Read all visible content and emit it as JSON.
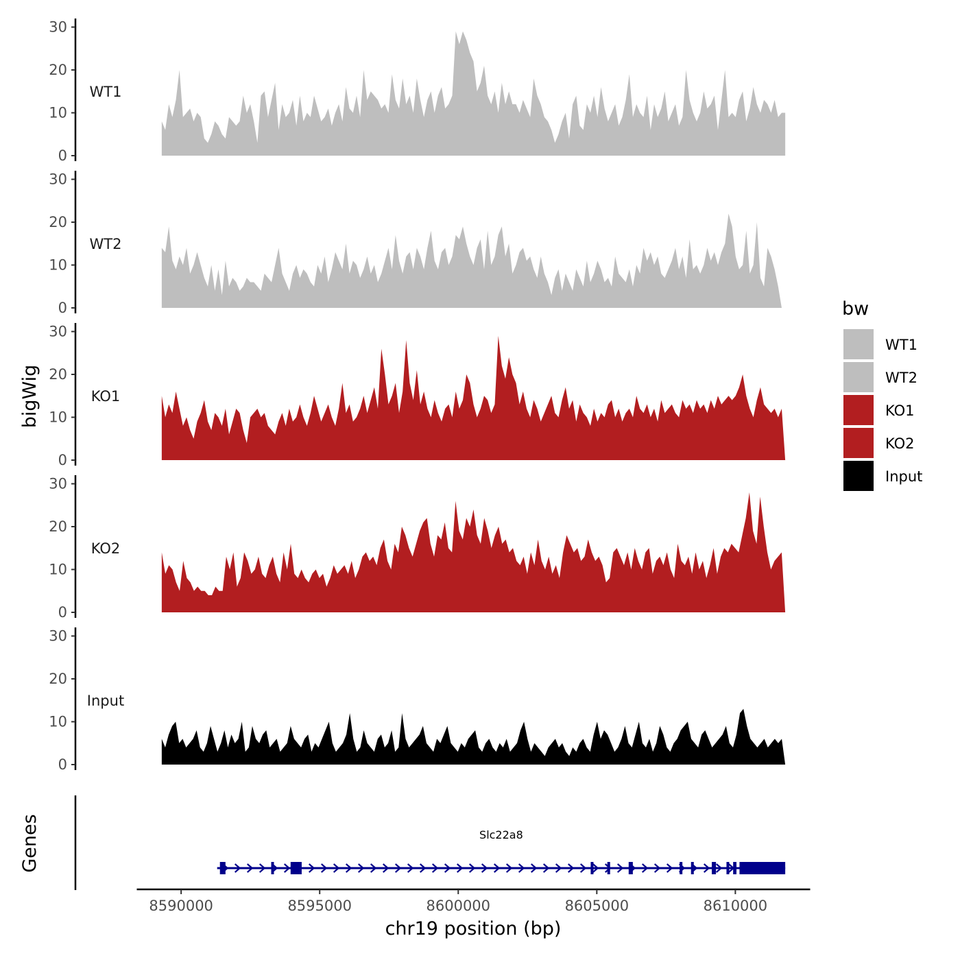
{
  "chart_data": {
    "type": "area",
    "title": "",
    "ylabel": "bigWig",
    "xlabel": "chr19 position (bp)",
    "genes_label": "Genes",
    "xlim": [
      8589300,
      8611800
    ],
    "ylim": [
      0,
      30
    ],
    "x_ticks": [
      8590000,
      8595000,
      8600000,
      8605000,
      8610000
    ],
    "x_tick_labels": [
      "8590000",
      "8595000",
      "8600000",
      "8605000",
      "8610000"
    ],
    "y_ticks": [
      0,
      10,
      20,
      30
    ],
    "y_tick_labels": [
      "0",
      "10",
      "20",
      "30"
    ],
    "legend": {
      "title": "bw",
      "entries": [
        {
          "name": "WT1",
          "color": "#bebebe"
        },
        {
          "name": "WT2",
          "color": "#bebebe"
        },
        {
          "name": "KO1",
          "color": "#b21e20"
        },
        {
          "name": "KO2",
          "color": "#b21e20"
        },
        {
          "name": "Input",
          "color": "#000000"
        }
      ]
    },
    "series": [
      {
        "name": "WT1",
        "color": "#bebebe",
        "x_start": 8589300,
        "x_end": 8611800,
        "values": [
          8,
          6,
          12,
          9,
          13,
          20,
          9,
          10,
          11,
          8,
          10,
          9,
          4,
          3,
          5,
          8,
          7,
          5,
          4,
          9,
          8,
          7,
          8,
          14,
          10,
          12,
          8,
          3,
          14,
          15,
          9,
          13,
          17,
          6,
          12,
          9,
          10,
          13,
          7,
          14,
          8,
          10,
          9,
          14,
          11,
          8,
          9,
          11,
          7,
          10,
          12,
          8,
          16,
          11,
          10,
          14,
          9,
          20,
          13,
          15,
          14,
          13,
          11,
          12,
          10,
          19,
          13,
          11,
          18,
          12,
          14,
          10,
          18,
          13,
          9,
          13,
          15,
          10,
          14,
          16,
          11,
          12,
          14,
          29,
          26,
          29,
          27,
          24,
          22,
          15,
          17,
          21,
          14,
          12,
          15,
          10,
          17,
          12,
          15,
          12,
          12,
          10,
          13,
          11,
          9,
          18,
          14,
          12,
          9,
          8,
          6,
          3,
          5,
          8,
          10,
          4,
          12,
          14,
          7,
          6,
          12,
          10,
          14,
          9,
          16,
          11,
          8,
          10,
          12,
          7,
          9,
          13,
          19,
          9,
          12,
          10,
          9,
          14,
          6,
          12,
          9,
          11,
          15,
          8,
          10,
          12,
          7,
          9,
          20,
          13,
          10,
          8,
          10,
          15,
          11,
          12,
          14,
          6,
          13,
          20,
          9,
          10,
          9,
          13,
          15,
          8,
          11,
          16,
          12,
          10,
          13,
          12,
          10,
          13,
          9,
          10,
          10
        ]
      },
      {
        "name": "WT2",
        "color": "#bebebe",
        "x_start": 8589300,
        "x_end": 8611800,
        "values": [
          14,
          13,
          19,
          11,
          9,
          12,
          10,
          14,
          8,
          10,
          13,
          10,
          7,
          5,
          10,
          4,
          9,
          3,
          11,
          5,
          7,
          6,
          4,
          5,
          7,
          6,
          6,
          5,
          4,
          8,
          7,
          6,
          10,
          14,
          8,
          6,
          4,
          8,
          10,
          7,
          9,
          8,
          6,
          5,
          10,
          8,
          12,
          6,
          9,
          13,
          11,
          9,
          15,
          8,
          11,
          10,
          7,
          9,
          12,
          8,
          10,
          6,
          8,
          11,
          14,
          9,
          17,
          11,
          8,
          12,
          13,
          9,
          14,
          12,
          9,
          14,
          18,
          11,
          9,
          13,
          14,
          10,
          12,
          17,
          16,
          19,
          15,
          12,
          10,
          14,
          16,
          9,
          18,
          10,
          12,
          17,
          19,
          12,
          15,
          8,
          10,
          13,
          14,
          11,
          12,
          9,
          7,
          12,
          8,
          6,
          3,
          7,
          9,
          4,
          8,
          6,
          4,
          9,
          7,
          5,
          11,
          6,
          8,
          11,
          9,
          6,
          7,
          5,
          12,
          8,
          7,
          6,
          9,
          5,
          10,
          8,
          14,
          11,
          13,
          10,
          12,
          8,
          7,
          9,
          11,
          14,
          9,
          12,
          7,
          16,
          9,
          10,
          8,
          10,
          14,
          11,
          13,
          10,
          13,
          15,
          22,
          19,
          12,
          9,
          10,
          18,
          8,
          10,
          20,
          7,
          5,
          14,
          12,
          9,
          5,
          0,
          0
        ]
      },
      {
        "name": "KO1",
        "color": "#b21e20",
        "x_start": 8589300,
        "x_end": 8611800,
        "values": [
          15,
          10,
          13,
          11,
          16,
          12,
          8,
          10,
          7,
          5,
          9,
          11,
          14,
          9,
          7,
          11,
          10,
          8,
          12,
          6,
          9,
          12,
          11,
          7,
          4,
          10,
          11,
          12,
          10,
          11,
          8,
          7,
          6,
          9,
          11,
          8,
          12,
          9,
          10,
          13,
          10,
          8,
          11,
          15,
          12,
          9,
          11,
          13,
          10,
          8,
          12,
          18,
          11,
          13,
          9,
          10,
          12,
          15,
          11,
          14,
          17,
          12,
          26,
          20,
          13,
          15,
          18,
          11,
          16,
          28,
          18,
          14,
          21,
          13,
          16,
          12,
          10,
          14,
          11,
          9,
          12,
          13,
          10,
          16,
          12,
          14,
          20,
          18,
          13,
          10,
          12,
          15,
          14,
          11,
          13,
          29,
          22,
          19,
          24,
          20,
          18,
          13,
          16,
          12,
          10,
          14,
          12,
          9,
          11,
          13,
          15,
          11,
          10,
          14,
          17,
          12,
          14,
          9,
          13,
          11,
          10,
          8,
          12,
          9,
          11,
          10,
          13,
          14,
          10,
          12,
          9,
          11,
          12,
          10,
          15,
          12,
          11,
          13,
          10,
          12,
          9,
          14,
          11,
          12,
          13,
          11,
          10,
          14,
          12,
          13,
          11,
          14,
          12,
          13,
          11,
          14,
          12,
          15,
          13,
          14,
          15,
          14,
          15,
          17,
          20,
          15,
          12,
          10,
          14,
          17,
          13,
          12,
          11,
          12,
          10,
          12,
          0
        ]
      },
      {
        "name": "KO2",
        "color": "#b21e20",
        "x_start": 8589300,
        "x_end": 8611800,
        "values": [
          14,
          9,
          11,
          10,
          7,
          5,
          12,
          8,
          7,
          5,
          6,
          5,
          5,
          4,
          4,
          6,
          5,
          5,
          13,
          10,
          14,
          6,
          8,
          14,
          12,
          9,
          10,
          13,
          9,
          8,
          11,
          13,
          9,
          7,
          14,
          10,
          16,
          9,
          8,
          10,
          8,
          7,
          9,
          10,
          8,
          9,
          6,
          8,
          11,
          9,
          10,
          11,
          9,
          12,
          8,
          10,
          13,
          14,
          12,
          13,
          11,
          15,
          17,
          12,
          10,
          16,
          14,
          20,
          18,
          15,
          13,
          16,
          19,
          21,
          22,
          16,
          13,
          18,
          17,
          21,
          15,
          14,
          26,
          19,
          17,
          22,
          20,
          24,
          18,
          16,
          22,
          19,
          15,
          18,
          20,
          16,
          17,
          14,
          15,
          12,
          11,
          13,
          9,
          14,
          11,
          17,
          12,
          10,
          13,
          9,
          11,
          8,
          14,
          18,
          16,
          14,
          15,
          12,
          13,
          17,
          14,
          12,
          13,
          11,
          7,
          8,
          14,
          15,
          13,
          11,
          14,
          10,
          15,
          12,
          10,
          14,
          15,
          9,
          12,
          13,
          11,
          14,
          10,
          8,
          16,
          12,
          11,
          13,
          9,
          14,
          10,
          12,
          8,
          11,
          15,
          9,
          13,
          15,
          14,
          16,
          15,
          14,
          18,
          22,
          28,
          19,
          16,
          27,
          20,
          14,
          10,
          12,
          13,
          14,
          0
        ]
      },
      {
        "name": "Input",
        "color": "#000000",
        "x_start": 8589300,
        "x_end": 8611800,
        "values": [
          6,
          4,
          7,
          9,
          10,
          5,
          6,
          4,
          5,
          6,
          8,
          4,
          3,
          5,
          9,
          6,
          3,
          5,
          8,
          4,
          7,
          5,
          6,
          10,
          3,
          4,
          9,
          6,
          5,
          7,
          8,
          4,
          5,
          6,
          3,
          4,
          5,
          9,
          6,
          5,
          4,
          6,
          7,
          3,
          5,
          4,
          6,
          8,
          10,
          5,
          3,
          4,
          5,
          7,
          12,
          6,
          3,
          4,
          8,
          5,
          4,
          3,
          6,
          7,
          4,
          5,
          8,
          3,
          4,
          12,
          6,
          4,
          5,
          6,
          7,
          9,
          5,
          4,
          3,
          6,
          5,
          7,
          9,
          5,
          4,
          3,
          5,
          4,
          6,
          7,
          8,
          4,
          3,
          5,
          6,
          4,
          3,
          5,
          4,
          6,
          3,
          4,
          5,
          8,
          10,
          6,
          3,
          5,
          4,
          3,
          2,
          4,
          5,
          6,
          4,
          5,
          3,
          2,
          4,
          3,
          5,
          6,
          4,
          3,
          7,
          10,
          6,
          8,
          7,
          5,
          3,
          4,
          6,
          9,
          5,
          4,
          7,
          10,
          5,
          4,
          6,
          3,
          5,
          9,
          7,
          4,
          3,
          5,
          6,
          8,
          9,
          10,
          6,
          5,
          4,
          7,
          8,
          6,
          4,
          5,
          6,
          7,
          9,
          5,
          4,
          7,
          12,
          13,
          9,
          6,
          5,
          4,
          5,
          6,
          4,
          5,
          6,
          5,
          6,
          0
        ]
      }
    ],
    "genes": [
      {
        "name": "Slc22a8",
        "color": "#00008b",
        "strand": "+",
        "start": 8591300,
        "end": 8611800,
        "exons": [
          [
            8591400,
            8591600
          ],
          [
            8593250,
            8593300
          ],
          [
            8593950,
            8594350
          ],
          [
            8604780,
            8604830
          ],
          [
            8605380,
            8605480
          ],
          [
            8606150,
            8606300
          ],
          [
            8607990,
            8608050
          ],
          [
            8608400,
            8608500
          ],
          [
            8609150,
            8609300
          ],
          [
            8609680,
            8609750
          ],
          [
            8609920,
            8610040
          ],
          [
            8610150,
            8611800
          ]
        ]
      }
    ]
  }
}
